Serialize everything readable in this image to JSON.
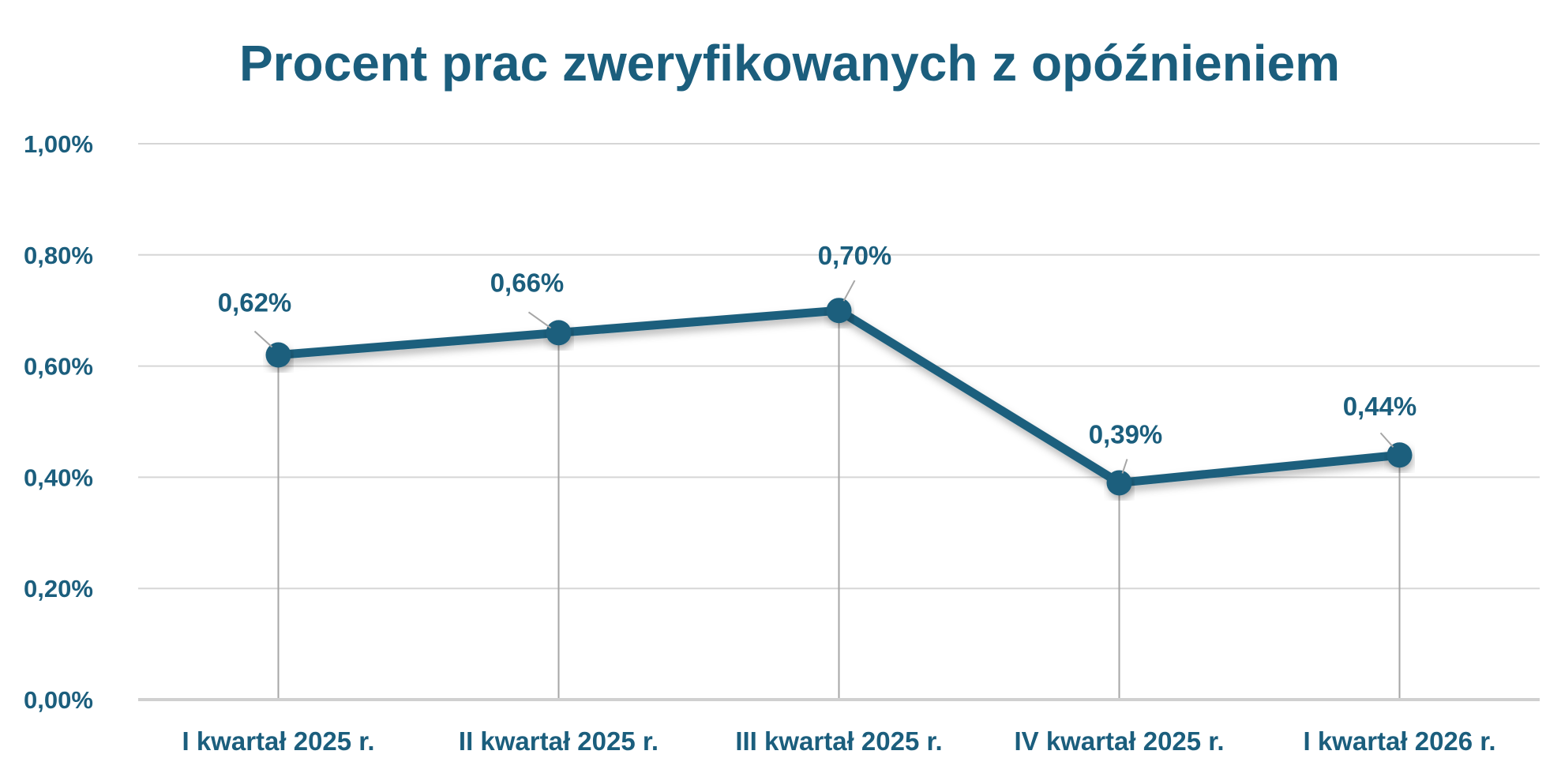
{
  "chart_data": {
    "type": "line",
    "title": "Procent prac zweryfikowanych z opóźnieniem",
    "xlabel": "",
    "ylabel": "",
    "categories": [
      "I kwartał 2025 r.",
      "II kwartał 2025 r.",
      "III kwartał 2025 r.",
      "IV kwartał 2025 r.",
      "I kwartał 2026 r."
    ],
    "values": [
      0.62,
      0.66,
      0.7,
      0.39,
      0.44
    ],
    "data_labels": [
      "0,62%",
      "0,66%",
      "0,70%",
      "0,39%",
      "0,44%"
    ],
    "ylim": [
      0,
      1.0
    ],
    "y_ticks": [
      0,
      0.2,
      0.4,
      0.6,
      0.8,
      1.0
    ],
    "y_tick_labels": [
      "0,00%",
      "0,20%",
      "0,40%",
      "0,60%",
      "0,80%",
      "1,00%"
    ],
    "grid": true,
    "drop_lines": true,
    "legend": "none",
    "colors": {
      "series": "#1b5e7d",
      "text": "#1b5e7d",
      "grid": "#d6d6d6",
      "drop_line": "#a6a6a6"
    }
  }
}
